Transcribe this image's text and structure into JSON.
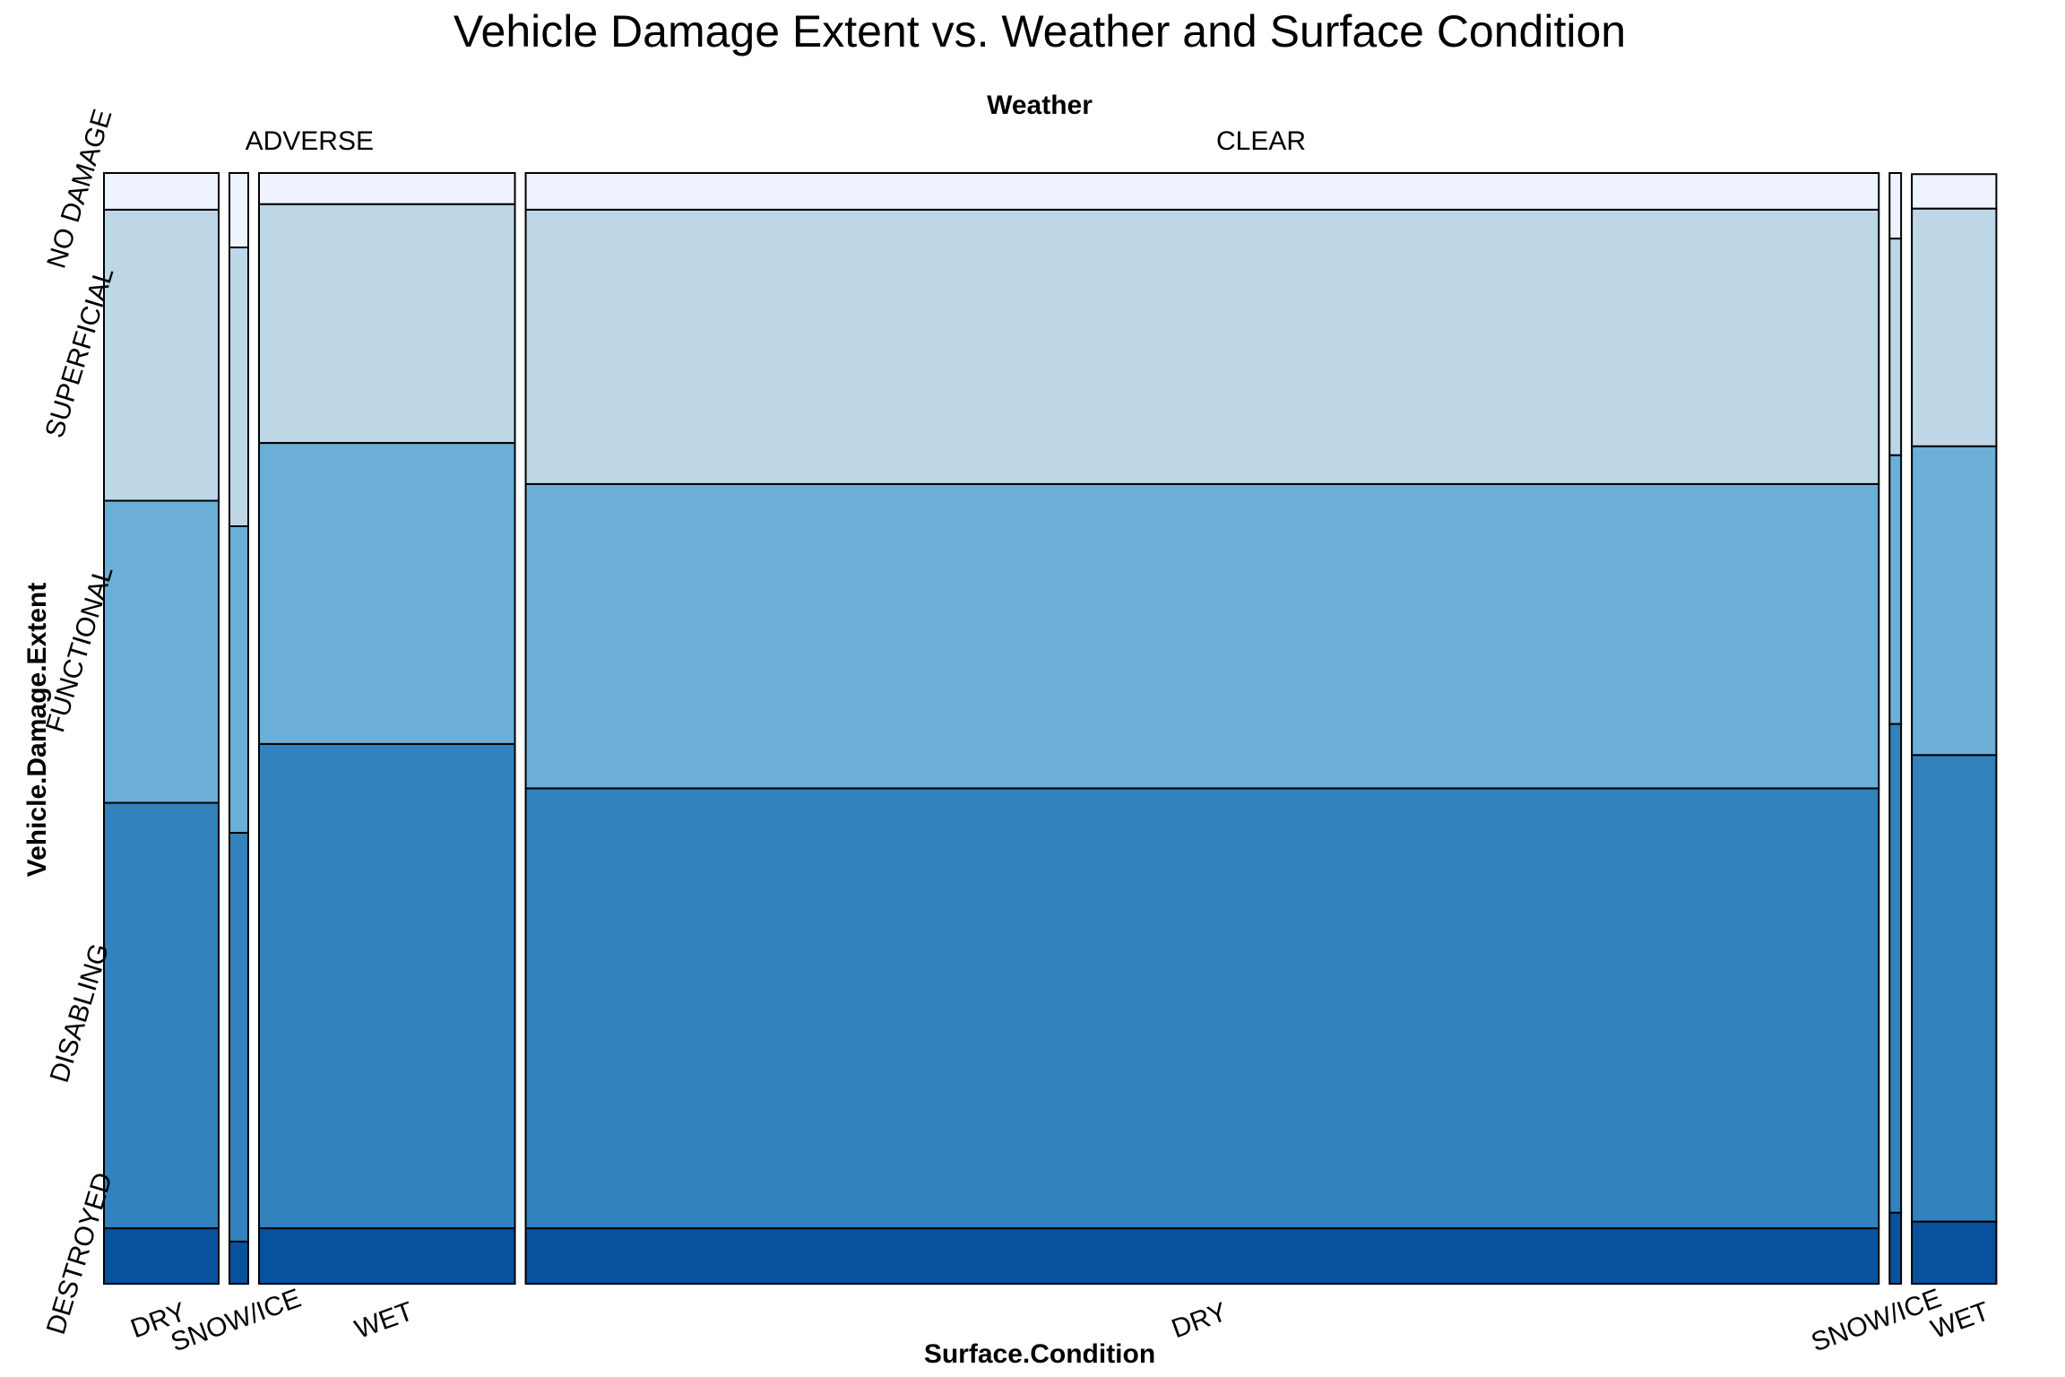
{
  "chart_data": {
    "type": "mosaic",
    "title": "Vehicle Damage Extent vs. Weather and Surface Condition",
    "xlabel": "Surface.Condition",
    "ylabel": "Vehicle.Damage.Extent",
    "column_variable": "Weather",
    "damage_levels": [
      "DESTROYED",
      "DISABLING",
      "FUNCTIONAL",
      "SUPERFICIAL",
      "NO DAMAGE"
    ],
    "colors": {
      "DESTROYED": "#08519c",
      "DISABLING": "#3182bd",
      "FUNCTIONAL": "#6baed6",
      "SUPERFICIAL": "#bdd7e7",
      "NO DAMAGE": "#eff3ff"
    },
    "weather_groups": [
      {
        "name": "ADVERSE",
        "share": 0.2
      },
      {
        "name": "CLEAR",
        "share": 0.8
      }
    ],
    "cells": [
      {
        "weather": "ADVERSE",
        "surface": "DRY",
        "share": 0.0627,
        "proportions": [
          0.05,
          0.383,
          0.272,
          0.262,
          0.033
        ]
      },
      {
        "weather": "ADVERSE",
        "surface": "SNOW/ICE",
        "share": 0.0103,
        "proportions": [
          0.038,
          0.368,
          0.276,
          0.251,
          0.067
        ]
      },
      {
        "weather": "ADVERSE",
        "surface": "WET",
        "share": 0.1399,
        "proportions": [
          0.05,
          0.436,
          0.271,
          0.215,
          0.028
        ]
      },
      {
        "weather": "CLEAR",
        "surface": "DRY",
        "share": 0.7397,
        "proportions": [
          0.05,
          0.396,
          0.274,
          0.247,
          0.033
        ]
      },
      {
        "weather": "CLEAR",
        "surface": "SNOW/ICE",
        "share": 0.0063,
        "proportions": [
          0.064,
          0.44,
          0.242,
          0.195,
          0.059
        ]
      },
      {
        "weather": "CLEAR",
        "surface": "WET",
        "share": 0.0462,
        "proportions": [
          0.056,
          0.42,
          0.278,
          0.214,
          0.031
        ]
      }
    ]
  }
}
